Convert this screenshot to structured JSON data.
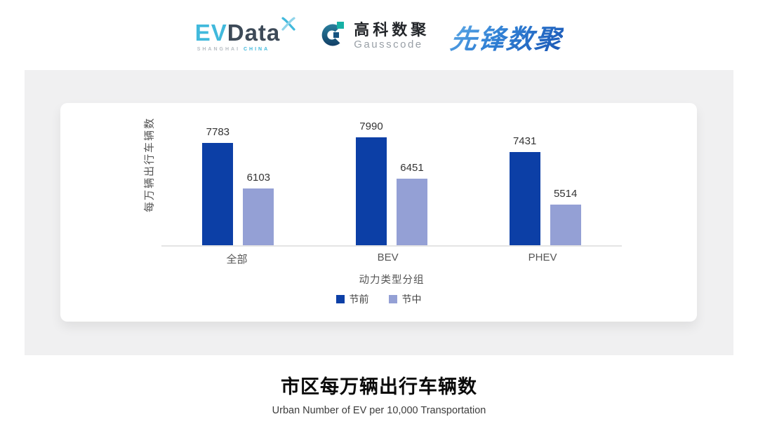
{
  "header": {
    "evdata": {
      "part1": "EV",
      "part2": "Data",
      "tagline_left": "SHANGHAI",
      "tagline_right": "CHINA"
    },
    "gausscode": {
      "name_cn": "高科数聚",
      "name_en": "Gausscode"
    },
    "pioneer": {
      "name": "先锋数聚"
    }
  },
  "chart_data": {
    "type": "bar",
    "categories": [
      "全部",
      "BEV",
      "PHEV"
    ],
    "series": [
      {
        "name": "节前",
        "color": "#0c3fa6",
        "values": [
          7783,
          7990,
          7431
        ]
      },
      {
        "name": "节中",
        "color": "#94a0d5",
        "values": [
          6103,
          6451,
          5514
        ]
      }
    ],
    "xlabel": "动力类型分组",
    "ylabel": "每万辆出行车辆数",
    "ylim": [
      4000,
      8400
    ],
    "grid": false,
    "legend_position": "bottom",
    "value_labels": true
  },
  "caption": {
    "title": "市区每万辆出行车辆数",
    "subtitle": "Urban Number of EV per 10,000 Transportation"
  },
  "colors": {
    "pre_holiday_bar": "#0c3fa6",
    "mid_holiday_bar": "#94a0d5",
    "panel_bg": "#f0f0f1",
    "card_bg": "#ffffff",
    "axis_line": "#e4e4e4",
    "evdata_cyan": "#41b9dc",
    "evdata_slate": "#3d4a58",
    "gausscode_navy": "#175380",
    "gausscode_teal": "#16b0a5",
    "pioneer_blue": "#2f7fd4"
  }
}
